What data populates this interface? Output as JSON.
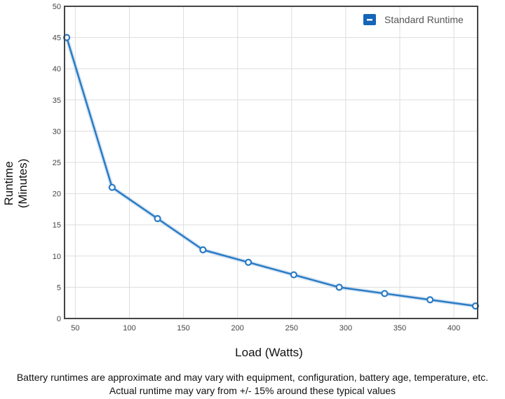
{
  "chart_data": {
    "type": "line",
    "x": [
      42,
      84,
      126,
      168,
      210,
      252,
      294,
      336,
      378,
      420
    ],
    "series": [
      {
        "name": "Standard Runtime",
        "values": [
          45,
          21,
          16,
          11,
          9,
          7,
          5,
          4,
          3,
          2
        ],
        "color": "#2a7bc4"
      }
    ],
    "xlabel": "Load (Watts)",
    "ylabel_lines": [
      "Runtime",
      "(Minutes)"
    ],
    "xlim": [
      40,
      422
    ],
    "ylim": [
      0,
      50
    ],
    "xticks": [
      50,
      100,
      150,
      200,
      250,
      300,
      350,
      400
    ],
    "yticks": [
      0,
      5,
      10,
      15,
      20,
      25,
      30,
      35,
      40,
      45,
      50
    ],
    "grid": true,
    "legend_position": "top-right"
  },
  "footnote": {
    "line1": "Battery runtimes are approximate and may vary with equipment, configuration, battery age, temperature, etc.",
    "line2": "Actual runtime may vary from +/- 15% around these typical values"
  },
  "colors": {
    "series": "#2a7bc4",
    "legend_swatch": "#1565b8",
    "grid": "#dddddd",
    "frame": "#444444"
  }
}
